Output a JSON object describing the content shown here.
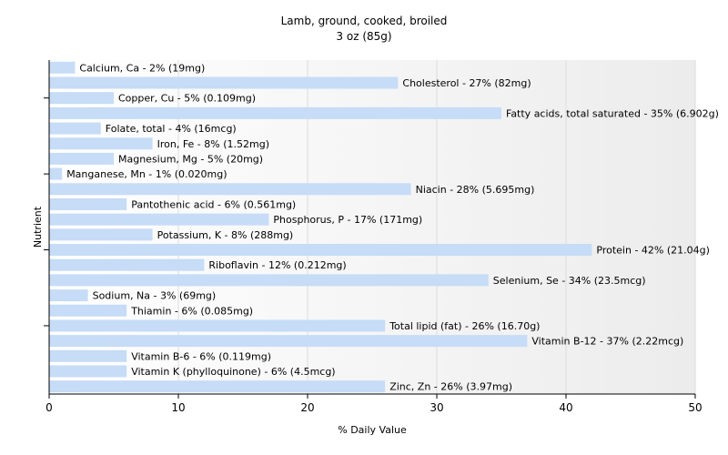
{
  "chart_data": {
    "type": "bar",
    "orientation": "horizontal",
    "title": "Lamb, ground, cooked, broiled",
    "subtitle": "3 oz (85g)",
    "xlabel": "% Daily Value",
    "ylabel": "Nutrient",
    "xlim": [
      0,
      50
    ],
    "xticks": [
      0,
      10,
      20,
      30,
      40,
      50
    ],
    "grid": "vertical",
    "bar_color": "#c6dcf7",
    "categories": [
      "Calcium, Ca",
      "Cholesterol",
      "Copper, Cu",
      "Fatty acids, total saturated",
      "Folate, total",
      "Iron, Fe",
      "Magnesium, Mg",
      "Manganese, Mn",
      "Niacin",
      "Pantothenic acid",
      "Phosphorus, P",
      "Potassium, K",
      "Protein",
      "Riboflavin",
      "Selenium, Se",
      "Sodium, Na",
      "Thiamin",
      "Total lipid (fat)",
      "Vitamin B-12",
      "Vitamin B-6",
      "Vitamin K (phylloquinone)",
      "Zinc, Zn"
    ],
    "values": [
      2,
      27,
      5,
      35,
      4,
      8,
      5,
      1,
      28,
      6,
      17,
      8,
      42,
      12,
      34,
      3,
      6,
      26,
      37,
      6,
      6,
      26
    ],
    "labels": [
      "Calcium, Ca - 2% (19mg)",
      "Cholesterol - 27% (82mg)",
      "Copper, Cu - 5% (0.109mg)",
      "Fatty acids, total saturated - 35% (6.902g)",
      "Folate, total - 4% (16mcg)",
      "Iron, Fe - 8% (1.52mg)",
      "Magnesium, Mg - 5% (20mg)",
      "Manganese, Mn - 1% (0.020mg)",
      "Niacin - 28% (5.695mg)",
      "Pantothenic acid - 6% (0.561mg)",
      "Phosphorus, P - 17% (171mg)",
      "Potassium, K - 8% (288mg)",
      "Protein - 42% (21.04g)",
      "Riboflavin - 12% (0.212mg)",
      "Selenium, Se - 34% (23.5mcg)",
      "Sodium, Na - 3% (69mg)",
      "Thiamin - 6% (0.085mg)",
      "Total lipid (fat) - 26% (16.70g)",
      "Vitamin B-12 - 37% (2.22mcg)",
      "Vitamin B-6 - 6% (0.119mg)",
      "Vitamin K (phylloquinone) - 6% (4.5mcg)",
      "Zinc, Zn - 26% (3.97mg)"
    ]
  }
}
